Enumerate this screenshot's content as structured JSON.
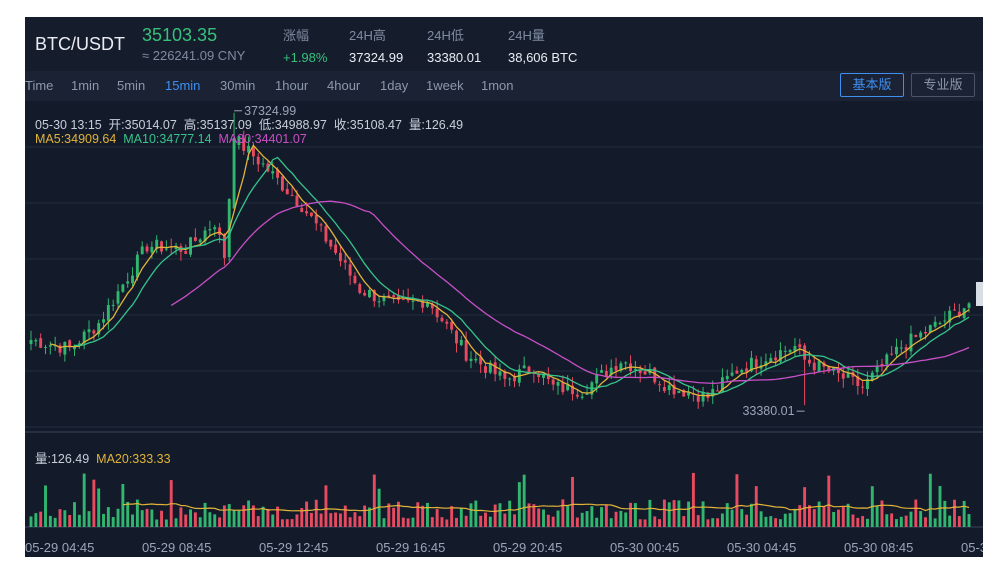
{
  "header": {
    "pair": "BTC/USDT",
    "price": "35103.35",
    "cny": "≈ 226241.09 CNY",
    "change_label": "涨幅",
    "change_value": "+1.98%",
    "high_label": "24H高",
    "high_value": "37324.99",
    "low_label": "24H低",
    "low_value": "33380.01",
    "volume_label": "24H量",
    "volume_value": "38,606 BTC"
  },
  "tabs": [
    {
      "label": "Time"
    },
    {
      "label": "1min"
    },
    {
      "label": "5min"
    },
    {
      "label": "15min",
      "active": true
    },
    {
      "label": "30min"
    },
    {
      "label": "1hour"
    },
    {
      "label": "4hour"
    },
    {
      "label": "1day"
    },
    {
      "label": "1week"
    },
    {
      "label": "1mon"
    }
  ],
  "view_buttons": {
    "basic": "基本版",
    "pro": "专业版"
  },
  "info": {
    "ohlc": "05-30 13:15  开:35014.07  高:35137.09  低:34988.97  收:35108.47  量:126.49",
    "ma5": "MA5:34909.64",
    "ma10": "MA10:34777.14",
    "ma30": "MA30:34401.07",
    "vol": "量:126.49",
    "ma20": "MA20:333.33"
  },
  "colors": {
    "up": "#30b66e",
    "down": "#e84a5f",
    "ma5": "#e1b338",
    "ma10": "#37c48a",
    "ma30": "#c84fc4",
    "grid": "#222c3e"
  },
  "chart_data": {
    "type": "candlestick",
    "x_ticks": [
      "05-29 04:45",
      "05-29 08:45",
      "05-29 12:45",
      "05-29 16:45",
      "05-29 20:45",
      "05-30 00:45",
      "05-30 04:45",
      "05-30 08:45",
      "05-3"
    ],
    "ohlc_anchors": [
      {
        "i": 0,
        "close": 33950
      },
      {
        "i": 8,
        "close": 33820
      },
      {
        "i": 14,
        "close": 34200
      },
      {
        "i": 24,
        "close": 35350
      },
      {
        "i": 32,
        "close": 35300
      },
      {
        "i": 38,
        "close": 35700
      },
      {
        "i": 40,
        "close": 35200
      },
      {
        "i": 42,
        "close": 36950
      },
      {
        "i": 48,
        "close": 36550
      },
      {
        "i": 56,
        "close": 35950
      },
      {
        "i": 62,
        "close": 35350
      },
      {
        "i": 68,
        "close": 34700
      },
      {
        "i": 76,
        "close": 34450
      },
      {
        "i": 82,
        "close": 34550
      },
      {
        "i": 90,
        "close": 33750
      },
      {
        "i": 98,
        "close": 33350
      },
      {
        "i": 104,
        "close": 33550
      },
      {
        "i": 108,
        "close": 33250
      },
      {
        "i": 114,
        "close": 33200
      },
      {
        "i": 122,
        "close": 33650
      },
      {
        "i": 128,
        "close": 33450
      },
      {
        "i": 132,
        "close": 33250
      },
      {
        "i": 140,
        "close": 33100
      },
      {
        "i": 146,
        "close": 33500
      },
      {
        "i": 152,
        "close": 33700
      },
      {
        "i": 158,
        "close": 33850
      },
      {
        "i": 160,
        "close": 33650
      },
      {
        "i": 166,
        "close": 33450
      },
      {
        "i": 172,
        "close": 33250
      },
      {
        "i": 180,
        "close": 33850
      },
      {
        "i": 188,
        "close": 34200
      },
      {
        "i": 194,
        "close": 34500
      }
    ],
    "high_marker": "37324.99",
    "low_marker": "33380.01",
    "y_range": [
      32700,
      37500
    ],
    "candle_count": 195,
    "volume_ma20": 333.33
  }
}
